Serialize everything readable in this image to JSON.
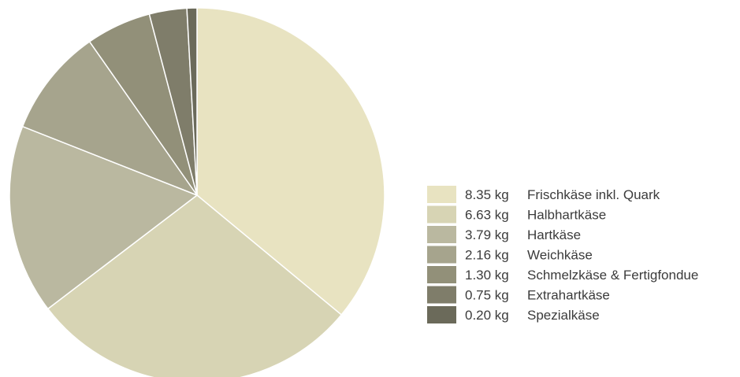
{
  "chart_data": {
    "type": "pie",
    "unit": "kg",
    "slices": [
      {
        "value": "8.35",
        "label": "Frischkäse inkl. Quark",
        "color": "#e8e3c1"
      },
      {
        "value": "6.63",
        "label": "Halbhartkäse",
        "color": "#d7d4b4"
      },
      {
        "value": "3.79",
        "label": "Hartkäse",
        "color": "#bab8a0"
      },
      {
        "value": "2.16",
        "label": "Weichkäse",
        "color": "#a6a48d"
      },
      {
        "value": "1.30",
        "label": "Schmelzkäse & Fertigfondue",
        "color": "#929079"
      },
      {
        "value": "0.75",
        "label": "Extrahartkäse",
        "color": "#7f7d6a"
      },
      {
        "value": "0.20",
        "label": "Spezialkäse",
        "color": "#6b6a5a"
      }
    ],
    "legend_position": "right"
  }
}
